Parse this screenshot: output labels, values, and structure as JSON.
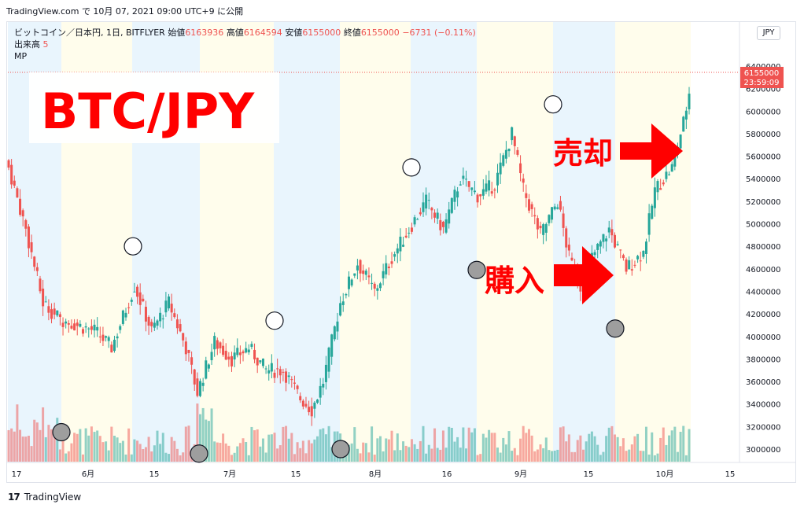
{
  "header": {
    "source_line": "TradingView.com で 10月 07, 2021 09:00 UTC+9 に公開"
  },
  "legend": {
    "symbol": "ビットコイン／日本円, 1日, BITFLYER",
    "open_label": "始値",
    "open": "6163936",
    "high_label": "高値",
    "high": "6164594",
    "low_label": "安値",
    "low": "6155000",
    "close_label": "終値",
    "close": "6155000",
    "change": "−6731 (−0.11%)",
    "volume_label": "出来高",
    "volume": "5",
    "mp_label": "MP"
  },
  "currency_button": "JPY",
  "price_tag": {
    "price": "6155000",
    "countdown": "23:59:09"
  },
  "annotations": {
    "title": "BTC/JPY",
    "sell": "売却",
    "buy": "購入"
  },
  "footer": {
    "brand": "TradingView",
    "logo": "17"
  },
  "colors": {
    "up": "#26a69a",
    "down": "#ef5350",
    "arrow": "#ff0000",
    "title": "#ff0000"
  },
  "chart_data": {
    "type": "candlestick",
    "y_ticks": [
      "6400000",
      "6200000",
      "6000000",
      "5800000",
      "5600000",
      "5400000",
      "5200000",
      "5000000",
      "4800000",
      "4600000",
      "4400000",
      "4200000",
      "4000000",
      "3800000",
      "3600000",
      "3400000",
      "3200000",
      "3000000"
    ],
    "x_ticks": [
      "17",
      "6月",
      "15",
      "7月",
      "15",
      "8月",
      "16",
      "9月",
      "15",
      "10月",
      "15"
    ],
    "ylim": [
      2900000,
      6450000
    ],
    "grid": false,
    "markers": {
      "sell_circles_price": [
        4800000,
        4140000,
        5500000,
        6060000
      ],
      "buy_circles_price": [
        3150000,
        2960000,
        3000000,
        4590000,
        4070000
      ]
    }
  }
}
